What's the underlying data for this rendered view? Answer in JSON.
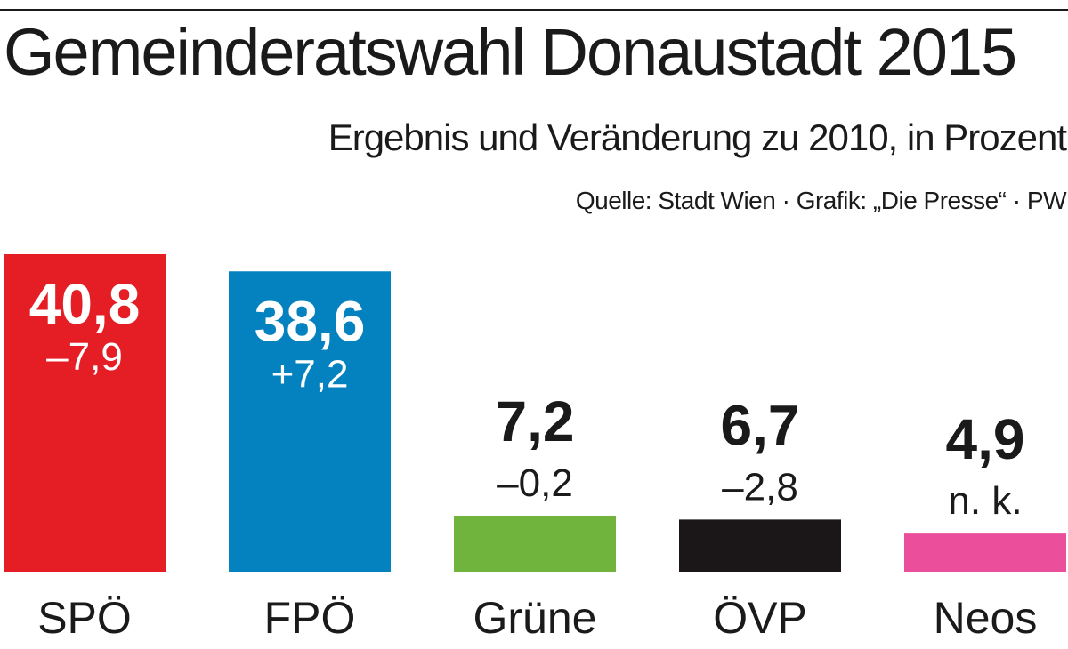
{
  "chart_data": {
    "type": "bar",
    "title": "Gemeinderatswahl Donaustadt 2015",
    "subtitle": "Ergebnis und Veränderung zu 2010, in Prozent",
    "source": "Quelle: Stadt Wien · Grafik: „Die Presse“ · PW",
    "categories": [
      "SPÖ",
      "FPÖ",
      "Grüne",
      "ÖVP",
      "Neos"
    ],
    "values": [
      40.8,
      38.6,
      7.2,
      6.7,
      4.9
    ],
    "value_labels": [
      "40,8",
      "38,6",
      "7,2",
      "6,7",
      "4,9"
    ],
    "change_labels": [
      "–7,9",
      "+7,2",
      "–0,2",
      "–2,8",
      "n. k."
    ],
    "colors": [
      "#e51e25",
      "#0482c0",
      "#71b43d",
      "#1b1718",
      "#eb4e9b"
    ],
    "ylim": [
      0,
      40.8
    ],
    "grid": false,
    "legend": "none"
  }
}
